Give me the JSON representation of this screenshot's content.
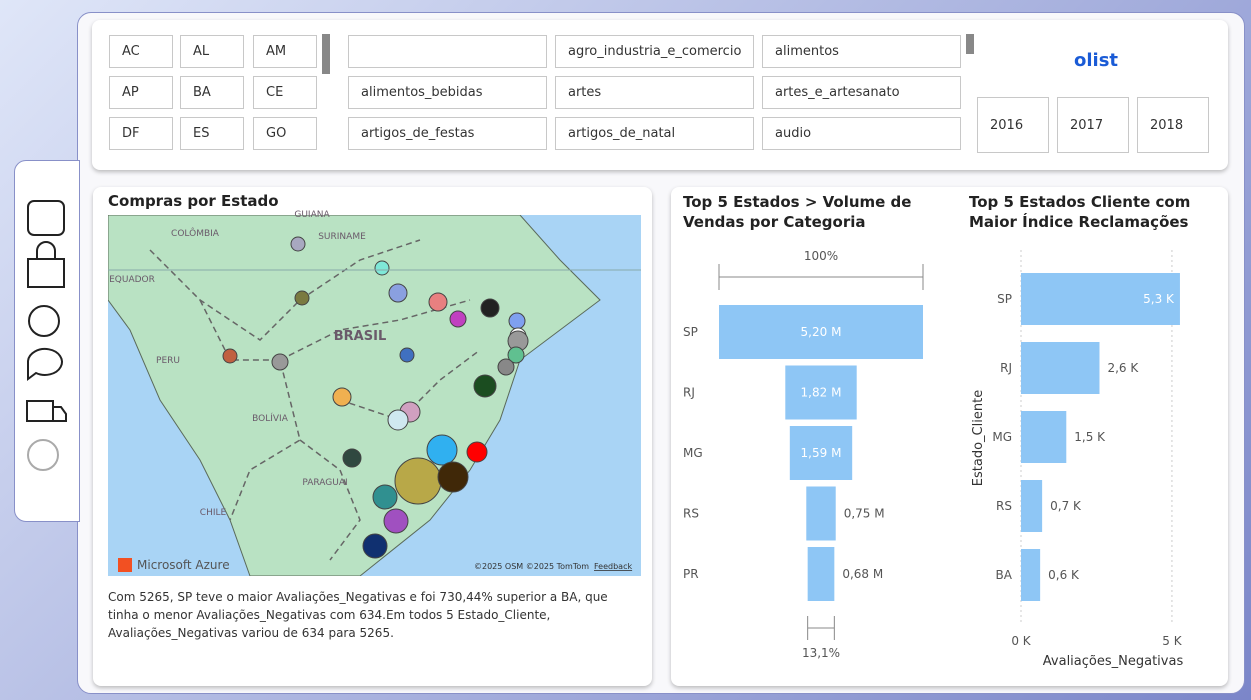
{
  "filters": {
    "states": [
      "AC",
      "AL",
      "AM",
      "AP",
      "BA",
      "CE",
      "DF",
      "ES",
      "GO"
    ],
    "categories": [
      "agro_industria_e_comercio",
      "alimentos",
      "alimentos_bebidas",
      "artes",
      "artes_e_artesanato",
      "artigos_de_festas",
      "artigos_de_natal",
      "audio"
    ],
    "years": [
      "2016",
      "2017",
      "2018"
    ]
  },
  "logo": "olist",
  "map": {
    "title": "Compras por Estado",
    "labels": [
      "GUIANA",
      "COLÔMBIA",
      "SURINAME",
      "EQUADOR",
      "BRASIL",
      "PERU",
      "BOLÍVIA",
      "PARAGUAI",
      "CHILE"
    ],
    "brand": "Microsoft Azure",
    "credits": "©2025 OSM  ©2025 TomTom",
    "feedback": "Feedback"
  },
  "narrative": "Com 5265, SP teve o maior Avaliações_Negativas e foi 730,44% superior a BA, que tinha o menor Avaliações_Negativas com 634.Em todos 5 Estado_Cliente, Avaliações_Negativas variou de 634 para 5265.",
  "chart_data": [
    {
      "type": "funnel",
      "title": "Top 5 Estados > Volume de Vendas por Categoria",
      "categories": [
        "SP",
        "RJ",
        "MG",
        "RS",
        "PR"
      ],
      "values": [
        5.2,
        1.82,
        1.59,
        0.75,
        0.68
      ],
      "value_labels": [
        "5,20 M",
        "1,82 M",
        "1,59 M",
        "0,75 M",
        "0,68 M"
      ],
      "color": "#8ec6f5",
      "top_label": "100%",
      "bottom_label": "13,1%"
    },
    {
      "type": "bar",
      "orientation": "horizontal",
      "title": "Top 5 Estados Cliente com Maior Índice Reclamações",
      "categories": [
        "SP",
        "RJ",
        "MG",
        "RS",
        "BA"
      ],
      "values": [
        5265,
        2600,
        1500,
        700,
        634
      ],
      "value_labels": [
        "5,3 K",
        "2,6 K",
        "1,5 K",
        "0,7 K",
        "0,6 K"
      ],
      "color": "#8ec6f5",
      "xlim": [
        0,
        5300
      ],
      "xticks": [
        {
          "value": 0,
          "label": "0 K"
        },
        {
          "value": 5000,
          "label": "5 K"
        }
      ],
      "xlabel": "Avaliações_Negativas",
      "ylabel": "Estado_Cliente",
      "grid": true
    }
  ]
}
